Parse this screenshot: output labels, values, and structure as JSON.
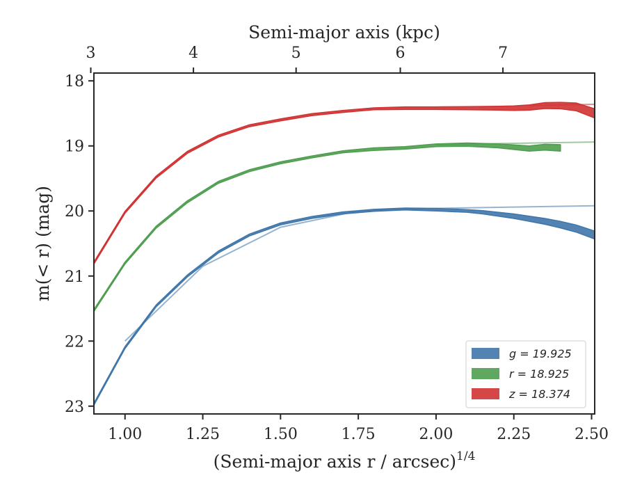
{
  "chart_data": {
    "type": "area",
    "xlabel": "(Semi-major axis r / arcsec)",
    "xlabel_superscript": "1/4",
    "ylabel": "m(< r) (mag)",
    "top_xlabel": "Semi-major axis (kpc)",
    "xlim": [
      0.9,
      2.51
    ],
    "ylim": [
      23.12,
      17.88
    ],
    "y_inverted": true,
    "x_ticks": [
      "1.00",
      "1.25",
      "1.50",
      "1.75",
      "2.00",
      "2.25",
      "2.50"
    ],
    "y_ticks": [
      "18",
      "19",
      "20",
      "21",
      "22",
      "23"
    ],
    "top_ticks": [
      {
        "label": "3",
        "x": 0.89
      },
      {
        "label": "4",
        "x": 1.22
      },
      {
        "label": "5",
        "x": 1.55
      },
      {
        "label": "6",
        "x": 1.885
      },
      {
        "label": "7",
        "x": 2.215
      }
    ],
    "legend": {
      "position": "lower-right"
    },
    "series": [
      {
        "name": "g = 19.925",
        "band": "g",
        "total": "19.925",
        "color": "#3f76aa",
        "model_line": {
          "x": [
            1.0,
            1.25,
            1.5,
            1.75,
            2.0,
            2.25,
            2.51
          ],
          "y": [
            22.0,
            20.85,
            20.25,
            20.0,
            19.96,
            19.94,
            19.92
          ]
        },
        "x": [
          0.9,
          1.0,
          1.1,
          1.2,
          1.3,
          1.4,
          1.5,
          1.6,
          1.7,
          1.8,
          1.9,
          2.0,
          2.05,
          2.1,
          2.15,
          2.2,
          2.25,
          2.3,
          2.35,
          2.4,
          2.45,
          2.51
        ],
        "y": [
          22.97,
          22.1,
          21.46,
          21.0,
          20.63,
          20.37,
          20.2,
          20.1,
          20.03,
          19.99,
          19.97,
          19.98,
          19.99,
          20.0,
          20.02,
          20.05,
          20.08,
          20.12,
          20.16,
          20.21,
          20.27,
          20.37
        ],
        "width": [
          0.03,
          0.03,
          0.03,
          0.03,
          0.03,
          0.03,
          0.03,
          0.03,
          0.03,
          0.03,
          0.03,
          0.04,
          0.04,
          0.04,
          0.05,
          0.06,
          0.07,
          0.08,
          0.09,
          0.1,
          0.11,
          0.12
        ]
      },
      {
        "name": "r = 18.925",
        "band": "r",
        "total": "18.925",
        "color": "#4f9d4f",
        "model_line": {
          "x": [
            2.0,
            2.25,
            2.51
          ],
          "y": [
            18.98,
            18.96,
            18.94
          ]
        },
        "x": [
          0.9,
          1.0,
          1.1,
          1.2,
          1.3,
          1.4,
          1.5,
          1.6,
          1.7,
          1.8,
          1.9,
          2.0,
          2.1,
          2.2,
          2.25,
          2.3,
          2.35,
          2.4
        ],
        "y": [
          21.53,
          20.8,
          20.25,
          19.86,
          19.56,
          19.38,
          19.26,
          19.17,
          19.09,
          19.05,
          19.03,
          18.99,
          18.98,
          19.0,
          19.02,
          19.04,
          19.02,
          19.03
        ],
        "width": [
          0.03,
          0.03,
          0.03,
          0.03,
          0.03,
          0.03,
          0.03,
          0.03,
          0.03,
          0.04,
          0.04,
          0.04,
          0.05,
          0.06,
          0.07,
          0.08,
          0.09,
          0.1
        ]
      },
      {
        "name": "z = 18.374",
        "band": "z",
        "total": "18.374",
        "color": "#d03232",
        "model_line": {
          "x": [
            2.3,
            2.51
          ],
          "y": [
            18.38,
            18.36
          ]
        },
        "x": [
          0.9,
          1.0,
          1.1,
          1.2,
          1.3,
          1.4,
          1.5,
          1.6,
          1.7,
          1.8,
          1.9,
          2.0,
          2.1,
          2.2,
          2.25,
          2.3,
          2.35,
          2.4,
          2.45,
          2.51
        ],
        "y": [
          20.8,
          20.02,
          19.48,
          19.1,
          18.85,
          18.69,
          18.6,
          18.52,
          18.47,
          18.43,
          18.42,
          18.42,
          18.42,
          18.42,
          18.42,
          18.41,
          18.38,
          18.38,
          18.4,
          18.5
        ],
        "width": [
          0.03,
          0.03,
          0.03,
          0.03,
          0.03,
          0.03,
          0.03,
          0.03,
          0.03,
          0.03,
          0.04,
          0.04,
          0.05,
          0.06,
          0.07,
          0.08,
          0.09,
          0.1,
          0.12,
          0.14
        ]
      }
    ]
  }
}
